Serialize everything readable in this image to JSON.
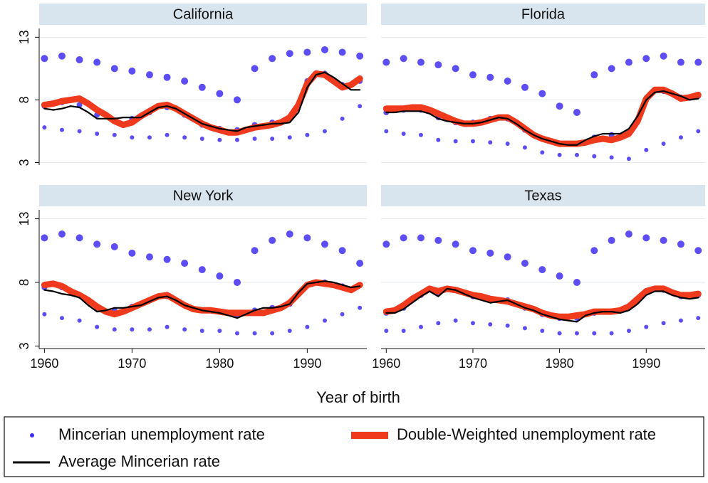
{
  "chart_data": [
    {
      "type": "line",
      "title": "California",
      "xlabel": "Year of birth",
      "xlim": [
        1959.4,
        1996.8
      ],
      "ylim": [
        2.8,
        13.7
      ],
      "yticks": [
        3,
        8,
        13
      ],
      "x": [
        1960,
        1961,
        1962,
        1963,
        1964,
        1965,
        1966,
        1967,
        1968,
        1969,
        1970,
        1971,
        1972,
        1973,
        1974,
        1975,
        1976,
        1977,
        1978,
        1979,
        1980,
        1981,
        1982,
        1983,
        1984,
        1985,
        1986,
        1987,
        1988,
        1989,
        1990,
        1991,
        1992,
        1993,
        1994,
        1995,
        1996
      ],
      "series": [
        {
          "name": "Mincerian unemployment rate",
          "type": "scatter",
          "color": "#3f2ef2",
          "x": [
            1960,
            1960,
            1960,
            1962,
            1962,
            1962,
            1964,
            1964,
            1964,
            1966,
            1966,
            1966,
            1968,
            1968,
            1968,
            1970,
            1970,
            1970,
            1972,
            1972,
            1972,
            1974,
            1974,
            1974,
            1976,
            1976,
            1976,
            1978,
            1978,
            1978,
            1980,
            1980,
            1980,
            1982,
            1982,
            1982,
            1984,
            1984,
            1984,
            1986,
            1986,
            1986,
            1988,
            1988,
            1988,
            1990,
            1990,
            1990,
            1992,
            1992,
            1992,
            1994,
            1994,
            1994,
            1996,
            1996,
            1996
          ],
          "values": [
            5.8,
            7.5,
            11.3,
            5.6,
            7.8,
            11.5,
            5.5,
            7.6,
            11.2,
            5.3,
            6.8,
            11.0,
            5.2,
            6.4,
            10.5,
            5.0,
            6.5,
            10.3,
            5.0,
            7.0,
            10.0,
            5.2,
            7.4,
            9.8,
            5.0,
            6.8,
            9.5,
            4.9,
            6.0,
            9.0,
            4.8,
            5.7,
            8.5,
            4.8,
            5.6,
            8.0,
            4.9,
            6.0,
            10.5,
            4.9,
            6.2,
            11.3,
            5.0,
            6.5,
            11.7,
            5.2,
            9.5,
            11.8,
            5.5,
            10.1,
            12.0,
            6.5,
            9.2,
            11.8,
            7.5,
            9.5,
            11.5
          ]
        },
        {
          "name": "Double-Weighted unemployment rate",
          "color": "#f03a1e",
          "values": [
            7.6,
            7.7,
            7.9,
            8.0,
            8.1,
            7.7,
            7.2,
            6.8,
            6.3,
            6.0,
            6.2,
            6.7,
            7.1,
            7.5,
            7.6,
            7.3,
            6.9,
            6.5,
            6.1,
            5.8,
            5.6,
            5.4,
            5.4,
            5.6,
            5.8,
            5.9,
            6.0,
            6.2,
            6.6,
            7.6,
            9.3,
            10.1,
            10.0,
            9.5,
            9.0,
            9.2,
            9.7
          ]
        },
        {
          "name": "Average Mincerian rate",
          "color": "#000000",
          "values": [
            7.3,
            7.2,
            7.3,
            7.5,
            7.4,
            7.0,
            6.5,
            6.5,
            6.5,
            6.6,
            6.6,
            6.6,
            7.0,
            7.4,
            7.5,
            7.3,
            6.9,
            6.5,
            6.1,
            5.9,
            5.7,
            5.6,
            5.5,
            5.8,
            5.9,
            6.0,
            6.1,
            6.1,
            6.2,
            7.0,
            9.0,
            10.0,
            10.2,
            9.8,
            9.3,
            8.8,
            8.8
          ]
        }
      ]
    },
    {
      "type": "line",
      "title": "Florida",
      "xlim": [
        1959.4,
        1996.8
      ],
      "ylim": [
        2.8,
        13.7
      ],
      "x": [
        1960,
        1961,
        1962,
        1963,
        1964,
        1965,
        1966,
        1967,
        1968,
        1969,
        1970,
        1971,
        1972,
        1973,
        1974,
        1975,
        1976,
        1977,
        1978,
        1979,
        1980,
        1981,
        1982,
        1983,
        1984,
        1985,
        1986,
        1987,
        1988,
        1989,
        1990,
        1991,
        1992,
        1993,
        1994,
        1995,
        1996
      ],
      "series": [
        {
          "type": "scatter",
          "x": [
            1960,
            1960,
            1960,
            1962,
            1962,
            1962,
            1964,
            1964,
            1964,
            1966,
            1966,
            1966,
            1968,
            1968,
            1968,
            1970,
            1970,
            1970,
            1972,
            1972,
            1972,
            1974,
            1974,
            1974,
            1976,
            1976,
            1976,
            1978,
            1978,
            1978,
            1980,
            1980,
            1980,
            1982,
            1982,
            1982,
            1984,
            1984,
            1984,
            1986,
            1986,
            1986,
            1988,
            1988,
            1988,
            1990,
            1990,
            1990,
            1992,
            1992,
            1992,
            1994,
            1994,
            1994,
            1996,
            1996,
            1996
          ],
          "values": [
            5.5,
            7.0,
            11.0,
            5.3,
            7.2,
            11.3,
            5.2,
            7.2,
            11.0,
            4.8,
            6.6,
            10.8,
            4.7,
            6.2,
            10.5,
            4.7,
            6.2,
            10.0,
            4.6,
            6.5,
            9.8,
            4.5,
            6.5,
            9.5,
            4.2,
            5.6,
            9.0,
            3.8,
            4.9,
            8.5,
            3.6,
            4.5,
            7.5,
            3.6,
            4.5,
            7.0,
            3.5,
            5.0,
            10.0,
            3.4,
            5.2,
            10.5,
            3.3,
            5.5,
            11.0,
            4.0,
            8.0,
            11.3,
            4.5,
            8.7,
            11.5,
            5.0,
            8.2,
            11.0,
            5.5,
            8.3,
            11.0
          ]
        },
        {
          "values": [
            7.3,
            7.3,
            7.3,
            7.4,
            7.4,
            7.2,
            6.9,
            6.6,
            6.3,
            6.1,
            6.1,
            6.2,
            6.4,
            6.6,
            6.6,
            6.2,
            5.7,
            5.2,
            4.9,
            4.7,
            4.5,
            4.5,
            4.5,
            4.6,
            4.8,
            4.9,
            4.8,
            5.0,
            5.3,
            6.3,
            8.1,
            8.8,
            8.8,
            8.5,
            8.1,
            8.2,
            8.4
          ]
        },
        {
          "values": [
            7.0,
            7.0,
            7.1,
            7.1,
            7.1,
            6.9,
            6.5,
            6.3,
            6.2,
            6.1,
            6.1,
            6.2,
            6.4,
            6.6,
            6.5,
            6.1,
            5.6,
            5.2,
            4.9,
            4.7,
            4.5,
            4.4,
            4.4,
            4.8,
            5.1,
            5.3,
            5.3,
            5.3,
            5.7,
            6.7,
            8.0,
            8.6,
            8.7,
            8.5,
            8.3,
            8.0,
            8.1
          ]
        }
      ]
    },
    {
      "type": "line",
      "title": "New York",
      "xlim": [
        1959.4,
        1996.8
      ],
      "ylim": [
        2.8,
        13.7
      ],
      "yticks": [
        3,
        8,
        13
      ],
      "xticks": [
        1960,
        1970,
        1980,
        1990
      ],
      "x": [
        1960,
        1961,
        1962,
        1963,
        1964,
        1965,
        1966,
        1967,
        1968,
        1969,
        1970,
        1971,
        1972,
        1973,
        1974,
        1975,
        1976,
        1977,
        1978,
        1979,
        1980,
        1981,
        1982,
        1983,
        1984,
        1985,
        1986,
        1987,
        1988,
        1989,
        1990,
        1991,
        1992,
        1993,
        1994,
        1995,
        1996
      ],
      "series": [
        {
          "type": "scatter",
          "x": [
            1960,
            1960,
            1960,
            1962,
            1962,
            1962,
            1964,
            1964,
            1964,
            1966,
            1966,
            1966,
            1968,
            1968,
            1968,
            1970,
            1970,
            1970,
            1972,
            1972,
            1972,
            1974,
            1974,
            1974,
            1976,
            1976,
            1976,
            1978,
            1978,
            1978,
            1980,
            1980,
            1980,
            1982,
            1982,
            1982,
            1984,
            1984,
            1984,
            1986,
            1986,
            1986,
            1988,
            1988,
            1988,
            1990,
            1990,
            1990,
            1992,
            1992,
            1992,
            1994,
            1994,
            1994,
            1996,
            1996,
            1996
          ],
          "values": [
            5.5,
            7.6,
            11.5,
            5.2,
            7.6,
            11.8,
            5.0,
            7.0,
            11.5,
            4.5,
            6.0,
            11.0,
            4.3,
            5.8,
            10.8,
            4.3,
            6.1,
            10.3,
            4.3,
            6.6,
            10.0,
            4.5,
            6.9,
            9.8,
            4.3,
            6.2,
            9.5,
            4.2,
            5.8,
            9.0,
            4.2,
            5.7,
            8.5,
            4.0,
            5.4,
            8.0,
            4.0,
            5.8,
            10.5,
            4.0,
            6.0,
            11.3,
            4.2,
            6.3,
            11.8,
            4.5,
            7.8,
            11.5,
            5.0,
            8.0,
            11.0,
            5.5,
            7.7,
            10.5,
            6.0,
            7.8,
            9.5
          ]
        },
        {
          "values": [
            7.8,
            7.9,
            7.7,
            7.3,
            7.0,
            6.6,
            6.1,
            5.7,
            5.5,
            5.7,
            6.0,
            6.3,
            6.6,
            6.9,
            7.0,
            6.6,
            6.2,
            5.9,
            5.8,
            5.8,
            5.7,
            5.6,
            5.6,
            5.6,
            5.6,
            5.6,
            5.8,
            6.0,
            6.4,
            7.1,
            7.8,
            8.0,
            7.9,
            7.8,
            7.6,
            7.4,
            7.8
          ]
        },
        {
          "values": [
            7.4,
            7.3,
            7.1,
            7.0,
            6.8,
            6.2,
            5.7,
            5.8,
            6.0,
            6.0,
            6.1,
            6.2,
            6.5,
            6.8,
            6.9,
            6.6,
            6.2,
            6.0,
            5.8,
            5.7,
            5.6,
            5.4,
            5.2,
            5.5,
            5.8,
            6.0,
            6.0,
            6.1,
            6.3,
            7.2,
            7.9,
            8.0,
            8.1,
            8.0,
            7.8,
            7.6,
            7.7
          ]
        }
      ]
    },
    {
      "type": "line",
      "title": "Texas",
      "xlim": [
        1959.4,
        1996.8
      ],
      "ylim": [
        2.8,
        13.7
      ],
      "xticks": [
        1960,
        1970,
        1980,
        1990
      ],
      "x": [
        1960,
        1961,
        1962,
        1963,
        1964,
        1965,
        1966,
        1967,
        1968,
        1969,
        1970,
        1971,
        1972,
        1973,
        1974,
        1975,
        1976,
        1977,
        1978,
        1979,
        1980,
        1981,
        1982,
        1983,
        1984,
        1985,
        1986,
        1987,
        1988,
        1989,
        1990,
        1991,
        1992,
        1993,
        1994,
        1995,
        1996
      ],
      "series": [
        {
          "type": "scatter",
          "x": [
            1960,
            1960,
            1960,
            1962,
            1962,
            1962,
            1964,
            1964,
            1964,
            1966,
            1966,
            1966,
            1968,
            1968,
            1968,
            1970,
            1970,
            1970,
            1972,
            1972,
            1972,
            1974,
            1974,
            1974,
            1976,
            1976,
            1976,
            1978,
            1978,
            1978,
            1980,
            1980,
            1980,
            1982,
            1982,
            1982,
            1984,
            1984,
            1984,
            1986,
            1986,
            1986,
            1988,
            1988,
            1988,
            1990,
            1990,
            1990,
            1992,
            1992,
            1992,
            1994,
            1994,
            1994,
            1996,
            1996,
            1996
          ],
          "values": [
            4.2,
            5.6,
            11.0,
            4.2,
            6.0,
            11.5,
            4.5,
            7.0,
            11.5,
            4.8,
            7.2,
            11.3,
            5.0,
            7.4,
            11.0,
            4.8,
            6.9,
            10.5,
            4.7,
            6.6,
            10.3,
            4.6,
            6.6,
            10.0,
            4.4,
            6.0,
            9.5,
            4.2,
            5.5,
            9.0,
            4.0,
            5.2,
            8.5,
            4.0,
            5.2,
            8.0,
            4.0,
            5.6,
            10.5,
            4.0,
            5.7,
            11.3,
            4.2,
            6.0,
            11.8,
            4.5,
            7.3,
            11.5,
            4.8,
            7.4,
            11.3,
            5.0,
            6.9,
            11.0,
            5.2,
            7.0,
            10.5
          ]
        },
        {
          "values": [
            5.7,
            5.8,
            6.2,
            6.7,
            7.1,
            7.5,
            7.3,
            7.5,
            7.4,
            7.2,
            7.0,
            6.9,
            6.7,
            6.6,
            6.5,
            6.3,
            6.1,
            5.9,
            5.6,
            5.4,
            5.3,
            5.3,
            5.4,
            5.5,
            5.7,
            5.7,
            5.7,
            5.8,
            6.1,
            6.7,
            7.3,
            7.5,
            7.5,
            7.2,
            7.0,
            7.0,
            7.1
          ]
        },
        {
          "values": [
            5.6,
            5.6,
            5.9,
            6.4,
            6.9,
            7.3,
            6.9,
            7.5,
            7.4,
            7.1,
            6.8,
            6.6,
            6.4,
            6.5,
            6.6,
            6.3,
            6.0,
            5.8,
            5.5,
            5.3,
            5.1,
            5.0,
            4.9,
            5.4,
            5.6,
            5.7,
            5.7,
            5.6,
            5.8,
            6.3,
            7.0,
            7.3,
            7.3,
            7.0,
            6.8,
            6.7,
            6.8
          ]
        }
      ]
    }
  ]
}
